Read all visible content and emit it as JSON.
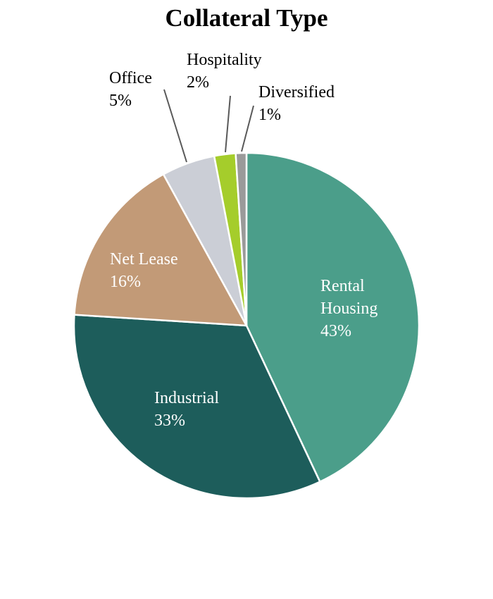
{
  "chart_data": {
    "type": "pie",
    "title": "Collateral Type",
    "slices": [
      {
        "label": "Rental Housing",
        "label_lines": [
          "Rental",
          "Housing"
        ],
        "value": 43,
        "display": "43%",
        "color": "#4b9e8a",
        "label_color": "#ffffff",
        "label_position": "inside"
      },
      {
        "label": "Industrial",
        "label_lines": [
          "Industrial"
        ],
        "value": 33,
        "display": "33%",
        "color": "#1d5d5b",
        "label_color": "#ffffff",
        "label_position": "inside"
      },
      {
        "label": "Net Lease",
        "label_lines": [
          "Net Lease"
        ],
        "value": 16,
        "display": "16%",
        "color": "#c29a77",
        "label_color": "#ffffff",
        "label_position": "inside"
      },
      {
        "label": "Office",
        "label_lines": [
          "Office"
        ],
        "value": 5,
        "display": "5%",
        "color": "#cbced6",
        "label_color": "#000000",
        "label_position": "outside"
      },
      {
        "label": "Hospitality",
        "label_lines": [
          "Hospitality"
        ],
        "value": 2,
        "display": "2%",
        "color": "#a5cd2b",
        "label_color": "#000000",
        "label_position": "outside"
      },
      {
        "label": "Diversified",
        "label_lines": [
          "Diversified"
        ],
        "value": 1,
        "display": "1%",
        "color": "#9a9a9a",
        "label_color": "#000000",
        "label_position": "outside"
      }
    ],
    "start_angle": "12 o'clock",
    "direction": "clockwise",
    "legend": "none"
  }
}
